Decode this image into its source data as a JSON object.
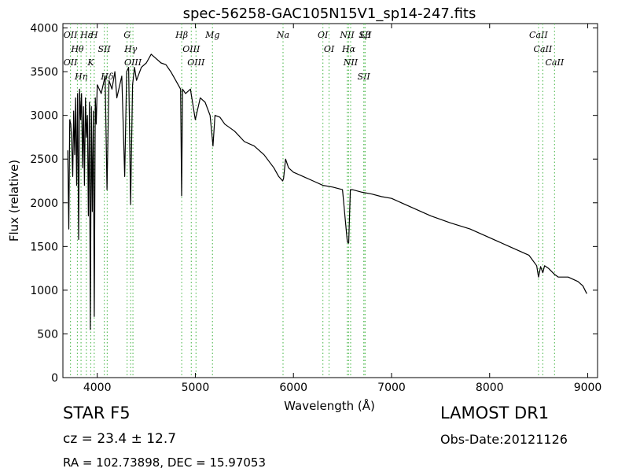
{
  "chart_data": {
    "type": "line",
    "title": "spec-56258-GAC105N15V1_sp14-247.fits",
    "xlabel": "Wavelength (Å)",
    "ylabel": "Flux (relative)",
    "xlim": [
      3650,
      9100
    ],
    "ylim": [
      0,
      4050
    ],
    "x_ticks": [
      4000,
      5000,
      6000,
      7000,
      8000,
      9000
    ],
    "y_ticks": [
      0,
      500,
      1000,
      1500,
      2000,
      2500,
      3000,
      3500,
      4000
    ],
    "grid": false,
    "series": [
      {
        "color": "#000000",
        "x": [
          3700,
          3710,
          3720,
          3730,
          3740,
          3750,
          3760,
          3770,
          3780,
          3790,
          3800,
          3810,
          3820,
          3830,
          3840,
          3850,
          3860,
          3870,
          3880,
          3890,
          3900,
          3910,
          3920,
          3930,
          3940,
          3950,
          3960,
          3970,
          3980,
          3990,
          4000,
          4020,
          4040,
          4060,
          4080,
          4100,
          4120,
          4150,
          4180,
          4200,
          4250,
          4280,
          4300,
          4320,
          4340,
          4360,
          4380,
          4400,
          4450,
          4500,
          4550,
          4600,
          4650,
          4700,
          4750,
          4800,
          4850,
          4860,
          4870,
          4900,
          4950,
          5000,
          5050,
          5100,
          5150,
          5180,
          5200,
          5250,
          5300,
          5400,
          5500,
          5600,
          5700,
          5800,
          5850,
          5890,
          5900,
          5920,
          5950,
          6000,
          6100,
          6200,
          6300,
          6400,
          6500,
          6550,
          6563,
          6580,
          6600,
          6700,
          6800,
          6900,
          7000,
          7200,
          7400,
          7600,
          7800,
          8000,
          8200,
          8400,
          8480,
          8498,
          8520,
          8542,
          8560,
          8600,
          8662,
          8700,
          8800,
          8900,
          8950,
          8990
        ],
        "values": [
          2600,
          1700,
          2950,
          2900,
          2700,
          2300,
          3050,
          2550,
          3200,
          2200,
          3250,
          1580,
          3300,
          2950,
          3250,
          2400,
          3100,
          2200,
          3200,
          2750,
          3000,
          1850,
          3150,
          550,
          3100,
          1900,
          3050,
          700,
          3200,
          2900,
          3350,
          3300,
          3250,
          3350,
          3450,
          2150,
          3400,
          3300,
          3500,
          3200,
          3450,
          2300,
          3500,
          3550,
          1980,
          3350,
          3550,
          3400,
          3550,
          3600,
          3700,
          3650,
          3600,
          3580,
          3500,
          3400,
          3300,
          2080,
          3300,
          3250,
          3300,
          2950,
          3200,
          3150,
          3000,
          2650,
          3000,
          2980,
          2900,
          2820,
          2700,
          2650,
          2550,
          2400,
          2300,
          2250,
          2280,
          2500,
          2400,
          2350,
          2300,
          2250,
          2200,
          2180,
          2150,
          1550,
          1540,
          2150,
          2150,
          2120,
          2100,
          2070,
          2050,
          1950,
          1850,
          1770,
          1700,
          1600,
          1500,
          1400,
          1280,
          1150,
          1270,
          1200,
          1280,
          1250,
          1180,
          1150,
          1150,
          1100,
          1050,
          960
        ]
      }
    ],
    "line_annotations": [
      {
        "x": 3727,
        "labels": [
          "OII",
          "OII"
        ]
      },
      {
        "x": 3798,
        "labels": [
          "Hθ"
        ]
      },
      {
        "x": 3835,
        "labels": [
          "Hη"
        ]
      },
      {
        "x": 3889,
        "labels": [
          "Hε"
        ]
      },
      {
        "x": 3934,
        "labels": [
          "K"
        ]
      },
      {
        "x": 3969,
        "labels": [
          "H"
        ]
      },
      {
        "x": 4072,
        "labels": [
          "SII"
        ]
      },
      {
        "x": 4102,
        "labels": [
          "Hδ"
        ]
      },
      {
        "x": 4304,
        "labels": [
          "G"
        ]
      },
      {
        "x": 4341,
        "labels": [
          "Hγ"
        ]
      },
      {
        "x": 4364,
        "labels": [
          "OIII"
        ]
      },
      {
        "x": 4861,
        "labels": [
          "Hβ"
        ]
      },
      {
        "x": 4959,
        "labels": [
          "OIII"
        ]
      },
      {
        "x": 5007,
        "labels": [
          "OIII"
        ]
      },
      {
        "x": 5175,
        "labels": [
          "Mg"
        ]
      },
      {
        "x": 5894,
        "labels": [
          "Na"
        ]
      },
      {
        "x": 6300,
        "labels": [
          "OI"
        ]
      },
      {
        "x": 6363,
        "labels": [
          "OI"
        ]
      },
      {
        "x": 6548,
        "labels": [
          "NII"
        ]
      },
      {
        "x": 6563,
        "labels": [
          "Hα"
        ]
      },
      {
        "x": 6583,
        "labels": [
          "NII"
        ]
      },
      {
        "x": 6717,
        "labels": [
          "SII"
        ]
      },
      {
        "x": 6730,
        "labels": [
          "Lβ"
        ]
      },
      {
        "x": 6731,
        "labels": [
          "SII"
        ]
      },
      {
        "x": 8498,
        "labels": [
          "CaII"
        ]
      },
      {
        "x": 8542,
        "labels": [
          "CaII"
        ]
      },
      {
        "x": 8662,
        "labels": [
          "CaII"
        ]
      }
    ],
    "annotation_color": "#5fbf5f"
  },
  "info": {
    "class": "STAR   F5",
    "survey": "LAMOST DR1",
    "cz": "cz = 23.4  ± 12.7",
    "obs_date": "Obs-Date:20121126",
    "radec": "RA = 102.73898, DEC = 15.97053"
  }
}
